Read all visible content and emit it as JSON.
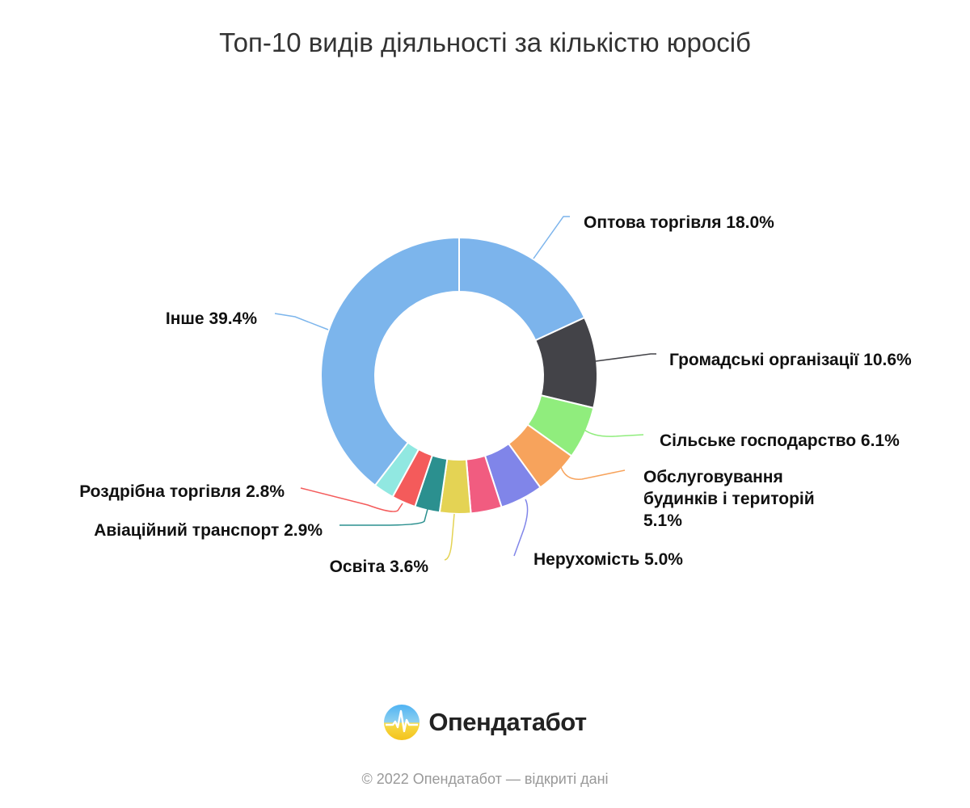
{
  "title": "Топ-10 видів діяльності за кількістю юросіб",
  "chart_data": {
    "type": "pie",
    "variant": "donut",
    "title": "Топ-10 видів діяльності за кількістю юросіб",
    "series": [
      {
        "label": "Оптова торгівля 18.0%",
        "value": 18.0,
        "color": "#7cb4ec"
      },
      {
        "label": "Громадські організації 10.6%",
        "value": 10.6,
        "color": "#434348"
      },
      {
        "label": "Сільське господарство 6.1%",
        "value": 6.1,
        "color": "#90ed7d"
      },
      {
        "label": "Обслуговування будинків і територій 5.1%",
        "value": 5.1,
        "color": "#f7a35c"
      },
      {
        "label": "Нерухомість 5.0%",
        "value": 5.0,
        "color": "#8085e9"
      },
      {
        "label": "",
        "value": 3.6,
        "color": "#f15c80"
      },
      {
        "label": "Освіта 3.6%",
        "value": 3.6,
        "color": "#e4d354"
      },
      {
        "label": "Авіаційний транспорт 2.9%",
        "value": 2.9,
        "color": "#2b908f"
      },
      {
        "label": "Роздрібна торгівля 2.8%",
        "value": 2.8,
        "color": "#f45b5b"
      },
      {
        "label": "",
        "value": 2.4,
        "color": "#91e8e1"
      },
      {
        "label": "Інше 39.4%",
        "value": 39.4,
        "color": "#7cb5ec"
      }
    ]
  },
  "brand": {
    "name": "Опендатабот"
  },
  "footer": "© 2022 Опендатабот — відкриті дані"
}
